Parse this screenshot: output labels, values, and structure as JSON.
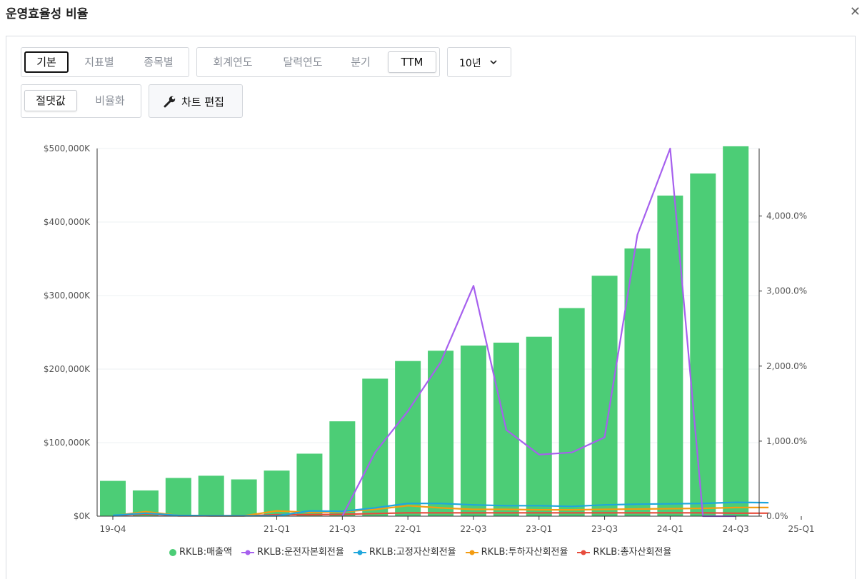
{
  "header": {
    "title": "운영효율성 비율"
  },
  "view_toggle": {
    "basic": "기본",
    "by_metric": "지표별",
    "by_ticker": "종목별"
  },
  "period_toggle": {
    "fiscal": "회계연도",
    "calendar": "달력연도",
    "quarter": "분기",
    "ttm": "TTM"
  },
  "range_select": {
    "value": "10년"
  },
  "value_toggle": {
    "absolute": "절댓값",
    "normalized": "비율화"
  },
  "edit_chart": {
    "label": "차트 편집"
  },
  "colors": {
    "revenue": "#4ccd76",
    "wc_turnover": "#a660ee",
    "fa_turnover": "#1fa6dc",
    "ic_turnover": "#f39c12",
    "ta_turnover": "#e74c3c"
  },
  "icons": {
    "close": "close-icon",
    "chevron": "chevron-down-icon",
    "wrench": "wrench-icon"
  },
  "chart_data": {
    "type": "bar",
    "categories": [
      "19-Q4",
      "20-Q1",
      "20-Q2",
      "20-Q3",
      "20-Q4",
      "21-Q1",
      "21-Q2",
      "21-Q3",
      "21-Q4",
      "22-Q1",
      "22-Q2",
      "22-Q3",
      "22-Q4",
      "23-Q1",
      "23-Q2",
      "23-Q3",
      "23-Q4",
      "24-Q1",
      "24-Q2",
      "24-Q3",
      "24-Q4",
      "25-Q1"
    ],
    "x_tick_labels": [
      "19-Q4",
      "21-Q1",
      "21-Q3",
      "22-Q1",
      "22-Q3",
      "23-Q1",
      "23-Q3",
      "24-Q1",
      "24-Q3",
      "25-Q1"
    ],
    "left_axis": {
      "ylim": [
        0,
        500000
      ],
      "ticks": [
        "$0K",
        "$100,000K",
        "$200,000K",
        "$300,000K",
        "$400,000K",
        "$500,000K"
      ]
    },
    "right_axis": {
      "ylim": [
        0,
        4900
      ],
      "ticks": [
        "0.0%",
        "1,000.0%",
        "2,000.0%",
        "3,000.0%",
        "4,000.0%"
      ]
    },
    "grid": true,
    "legend_position": "bottom",
    "series": [
      {
        "name": "RKLB:매출액",
        "type": "bar",
        "axis": "left",
        "values": [
          48000,
          35000,
          52000,
          55000,
          50000,
          62000,
          85000,
          129000,
          187000,
          211000,
          225000,
          232000,
          236000,
          244000,
          283000,
          327000,
          364000,
          436000,
          466000,
          503000,
          null,
          null
        ]
      },
      {
        "name": "RKLB:운전자본회전율",
        "type": "line",
        "axis": "right",
        "values": [
          null,
          null,
          null,
          null,
          null,
          null,
          null,
          0,
          850,
          1400,
          2050,
          3070,
          1150,
          820,
          850,
          1050,
          3750,
          4900,
          0,
          0,
          null,
          null
        ]
      },
      {
        "name": "RKLB:고정자산회전율",
        "type": "line",
        "axis": "right",
        "values": [
          10,
          40,
          10,
          5,
          5,
          5,
          70,
          65,
          110,
          170,
          170,
          150,
          140,
          140,
          130,
          150,
          160,
          165,
          170,
          185,
          180,
          null
        ]
      },
      {
        "name": "RKLB:투하자산회전율",
        "type": "line",
        "axis": "right",
        "values": [
          5,
          60,
          10,
          5,
          5,
          70,
          50,
          60,
          90,
          140,
          110,
          90,
          90,
          85,
          85,
          90,
          95,
          100,
          105,
          115,
          115,
          null
        ]
      },
      {
        "name": "RKLB:총자산회전율",
        "type": "line",
        "axis": "right",
        "values": [
          5,
          30,
          5,
          5,
          5,
          20,
          20,
          25,
          35,
          45,
          45,
          45,
          45,
          45,
          45,
          45,
          45,
          45,
          45,
          40,
          40,
          null
        ]
      }
    ]
  }
}
